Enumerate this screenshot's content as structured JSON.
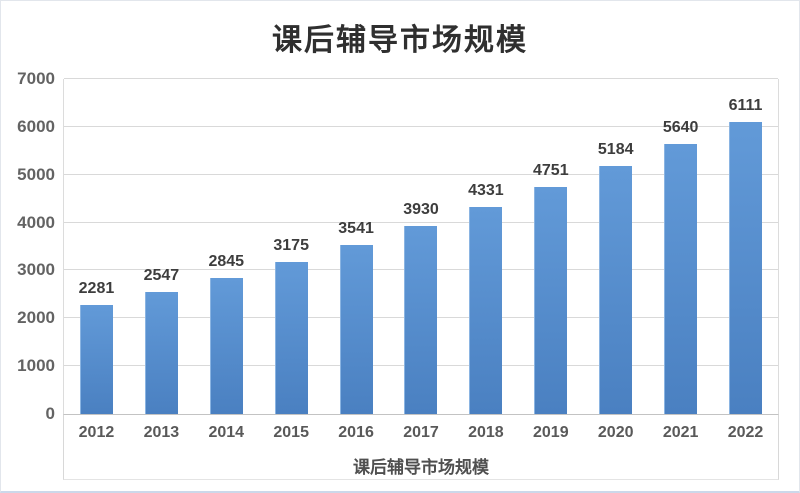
{
  "chart_data": {
    "type": "bar",
    "title": "课后辅导市场规模",
    "categories": [
      "2012",
      "2013",
      "2014",
      "2015",
      "2016",
      "2017",
      "2018",
      "2019",
      "2020",
      "2021",
      "2022"
    ],
    "values": [
      2281,
      2547,
      2845,
      3175,
      3541,
      3930,
      4331,
      4751,
      5184,
      5640,
      6111
    ],
    "series_name": "课后辅导市场规模",
    "xlabel": "课后辅导市场规模",
    "ylabel": "",
    "ylim": [
      0,
      7000
    ],
    "yticks": [
      0,
      1000,
      2000,
      3000,
      4000,
      5000,
      6000,
      7000
    ],
    "grid": true,
    "legend_position": "none",
    "data_labels": true,
    "colors": {
      "bar_gradient_top": "#629ad8",
      "bar_gradient_bottom": "#4a80c1",
      "bar_edge_highlight": "#8ab4e2",
      "gridline": "#d9d9d9",
      "axis_line": "#c3c3c3",
      "title_text": "#2f2f2f",
      "value_label_text": "#3d3d3d",
      "tick_label_text": "#636363",
      "category_label_text": "#595959",
      "axis_title_text": "#4f4f4f",
      "frame_border": "#e2e6ec",
      "frame_border_bottom": "#ccd8ea"
    }
  }
}
